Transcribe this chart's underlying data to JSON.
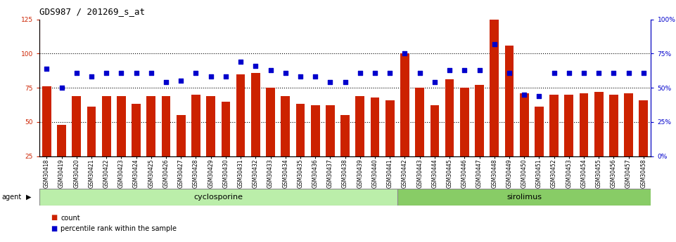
{
  "title": "GDS987 / 201269_s_at",
  "categories": [
    "GSM30418",
    "GSM30419",
    "GSM30420",
    "GSM30421",
    "GSM30422",
    "GSM30423",
    "GSM30424",
    "GSM30425",
    "GSM30426",
    "GSM30427",
    "GSM30428",
    "GSM30429",
    "GSM30430",
    "GSM30431",
    "GSM30432",
    "GSM30433",
    "GSM30434",
    "GSM30435",
    "GSM30436",
    "GSM30437",
    "GSM30438",
    "GSM30439",
    "GSM30440",
    "GSM30441",
    "GSM30442",
    "GSM30443",
    "GSM30444",
    "GSM30445",
    "GSM30446",
    "GSM30447",
    "GSM30448",
    "GSM30449",
    "GSM30450",
    "GSM30451",
    "GSM30452",
    "GSM30453",
    "GSM30454",
    "GSM30455",
    "GSM30456",
    "GSM30457",
    "GSM30458"
  ],
  "counts": [
    76,
    48,
    69,
    61,
    69,
    69,
    63,
    69,
    69,
    55,
    70,
    69,
    65,
    85,
    86,
    75,
    69,
    63,
    62,
    62,
    55,
    69,
    68,
    66,
    100,
    75,
    62,
    81,
    75,
    77,
    125,
    106,
    71,
    61,
    70,
    70,
    71,
    72,
    70,
    71,
    66
  ],
  "percentiles": [
    64,
    50,
    61,
    58,
    61,
    61,
    61,
    61,
    54,
    55,
    61,
    58,
    58,
    69,
    66,
    63,
    61,
    58,
    58,
    54,
    54,
    61,
    61,
    61,
    75,
    61,
    54,
    63,
    63,
    63,
    82,
    61,
    45,
    44,
    61,
    61,
    61,
    61,
    61,
    61,
    61
  ],
  "cyclosporine_count": 24,
  "bar_color": "#cc2200",
  "dot_color": "#0000cc",
  "cyclo_bg": "#bbeeaa",
  "siro_bg": "#88cc66",
  "ylim_left": [
    25,
    125
  ],
  "ylim_right": [
    0,
    100
  ],
  "left_ticks": [
    25,
    50,
    75,
    100,
    125
  ],
  "right_ticks": [
    0,
    25,
    50,
    75,
    100
  ],
  "right_tick_labels": [
    "0%",
    "25%",
    "50%",
    "75%",
    "100%"
  ],
  "hlines": [
    50,
    75,
    100
  ],
  "title_fontsize": 9,
  "tick_fontsize": 6.5,
  "bar_width": 0.6
}
